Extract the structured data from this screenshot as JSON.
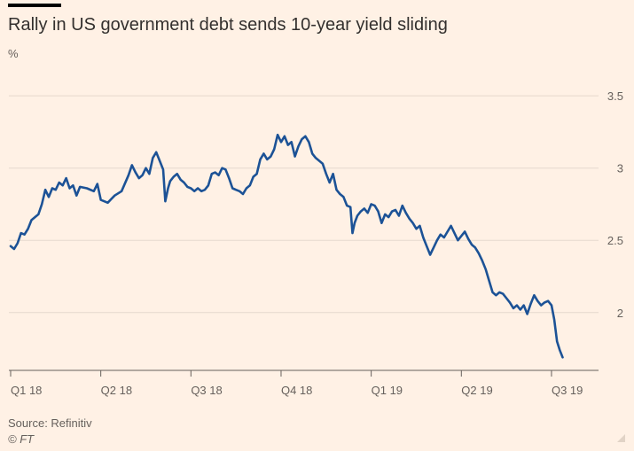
{
  "chart_data": {
    "type": "line",
    "title": "Rally in US government debt sends 10-year yield sliding",
    "ylabel": "%",
    "xlabel": "",
    "ylim": [
      1.6,
      3.55
    ],
    "yticks": [
      2,
      2.5,
      3,
      3.5
    ],
    "ytick_labels": [
      "2",
      "2.5",
      "3",
      "3.5"
    ],
    "xticks": [
      {
        "label": "Q1 18",
        "week": 0
      },
      {
        "label": "Q2 18",
        "week": 13
      },
      {
        "label": "Q3 18",
        "week": 26
      },
      {
        "label": "Q4 18",
        "week": 39
      },
      {
        "label": "Q1 19",
        "week": 52
      },
      {
        "label": "Q2 19",
        "week": 65
      },
      {
        "label": "Q3 19",
        "week": 78
      }
    ],
    "x_unit": "weeks since 2018-01-01",
    "series": [
      {
        "name": "US 10-year Treasury yield",
        "color": "#1c5296",
        "points": [
          [
            0,
            2.46
          ],
          [
            0.5,
            2.44
          ],
          [
            1,
            2.48
          ],
          [
            1.5,
            2.55
          ],
          [
            2,
            2.54
          ],
          [
            2.5,
            2.58
          ],
          [
            3,
            2.64
          ],
          [
            3.5,
            2.66
          ],
          [
            4,
            2.68
          ],
          [
            4.5,
            2.75
          ],
          [
            5,
            2.85
          ],
          [
            5.5,
            2.8
          ],
          [
            6,
            2.86
          ],
          [
            6.5,
            2.85
          ],
          [
            7,
            2.9
          ],
          [
            7.5,
            2.88
          ],
          [
            8,
            2.93
          ],
          [
            8.5,
            2.86
          ],
          [
            9,
            2.88
          ],
          [
            9.5,
            2.81
          ],
          [
            10,
            2.87
          ],
          [
            11,
            2.86
          ],
          [
            12,
            2.84
          ],
          [
            12.5,
            2.89
          ],
          [
            13,
            2.78
          ],
          [
            14,
            2.76
          ],
          [
            15,
            2.81
          ],
          [
            16,
            2.84
          ],
          [
            17,
            2.95
          ],
          [
            17.5,
            3.02
          ],
          [
            18,
            2.97
          ],
          [
            18.5,
            2.93
          ],
          [
            19,
            2.95
          ],
          [
            19.5,
            3.0
          ],
          [
            20,
            2.96
          ],
          [
            20.5,
            3.07
          ],
          [
            21,
            3.11
          ],
          [
            21.5,
            3.05
          ],
          [
            22,
            2.99
          ],
          [
            22.3,
            2.77
          ],
          [
            22.7,
            2.86
          ],
          [
            23,
            2.91
          ],
          [
            23.5,
            2.94
          ],
          [
            24,
            2.96
          ],
          [
            24.5,
            2.92
          ],
          [
            25,
            2.9
          ],
          [
            25.5,
            2.87
          ],
          [
            26,
            2.86
          ],
          [
            26.5,
            2.84
          ],
          [
            27,
            2.86
          ],
          [
            27.5,
            2.84
          ],
          [
            28,
            2.85
          ],
          [
            28.5,
            2.88
          ],
          [
            29,
            2.96
          ],
          [
            29.5,
            2.97
          ],
          [
            30,
            2.95
          ],
          [
            30.5,
            3.0
          ],
          [
            31,
            2.99
          ],
          [
            31.5,
            2.93
          ],
          [
            32,
            2.86
          ],
          [
            32.5,
            2.85
          ],
          [
            33,
            2.84
          ],
          [
            33.5,
            2.82
          ],
          [
            34,
            2.86
          ],
          [
            34.5,
            2.88
          ],
          [
            35,
            2.94
          ],
          [
            35.5,
            2.96
          ],
          [
            36,
            3.06
          ],
          [
            36.5,
            3.1
          ],
          [
            37,
            3.06
          ],
          [
            37.5,
            3.08
          ],
          [
            38,
            3.13
          ],
          [
            38.5,
            3.23
          ],
          [
            39,
            3.18
          ],
          [
            39.5,
            3.22
          ],
          [
            40,
            3.16
          ],
          [
            40.5,
            3.18
          ],
          [
            41,
            3.08
          ],
          [
            41.5,
            3.15
          ],
          [
            42,
            3.2
          ],
          [
            42.5,
            3.22
          ],
          [
            43,
            3.18
          ],
          [
            43.5,
            3.1
          ],
          [
            44,
            3.07
          ],
          [
            44.5,
            3.05
          ],
          [
            45,
            3.03
          ],
          [
            45.5,
            2.96
          ],
          [
            46,
            2.9
          ],
          [
            46.5,
            2.96
          ],
          [
            47,
            2.85
          ],
          [
            47.5,
            2.82
          ],
          [
            48,
            2.8
          ],
          [
            48.5,
            2.74
          ],
          [
            49,
            2.73
          ],
          [
            49.3,
            2.55
          ],
          [
            49.6,
            2.62
          ],
          [
            50,
            2.67
          ],
          [
            50.5,
            2.7
          ],
          [
            51,
            2.72
          ],
          [
            51.5,
            2.69
          ],
          [
            52,
            2.75
          ],
          [
            52.5,
            2.74
          ],
          [
            53,
            2.7
          ],
          [
            53.5,
            2.62
          ],
          [
            54,
            2.68
          ],
          [
            54.5,
            2.66
          ],
          [
            55,
            2.7
          ],
          [
            55.5,
            2.71
          ],
          [
            56,
            2.67
          ],
          [
            56.5,
            2.74
          ],
          [
            57,
            2.69
          ],
          [
            57.5,
            2.65
          ],
          [
            58,
            2.62
          ],
          [
            58.5,
            2.58
          ],
          [
            59,
            2.6
          ],
          [
            59.5,
            2.52
          ],
          [
            60,
            2.46
          ],
          [
            60.5,
            2.4
          ],
          [
            61,
            2.45
          ],
          [
            61.5,
            2.5
          ],
          [
            62,
            2.54
          ],
          [
            62.5,
            2.52
          ],
          [
            63,
            2.56
          ],
          [
            63.5,
            2.6
          ],
          [
            64,
            2.55
          ],
          [
            64.5,
            2.5
          ],
          [
            65,
            2.53
          ],
          [
            65.5,
            2.56
          ],
          [
            66,
            2.51
          ],
          [
            66.5,
            2.47
          ],
          [
            67,
            2.45
          ],
          [
            67.5,
            2.41
          ],
          [
            68,
            2.36
          ],
          [
            68.5,
            2.3
          ],
          [
            69,
            2.22
          ],
          [
            69.5,
            2.14
          ],
          [
            70,
            2.12
          ],
          [
            70.5,
            2.14
          ],
          [
            71,
            2.13
          ],
          [
            71.5,
            2.1
          ],
          [
            72,
            2.07
          ],
          [
            72.5,
            2.03
          ],
          [
            73,
            2.05
          ],
          [
            73.5,
            2.02
          ],
          [
            74,
            2.05
          ],
          [
            74.5,
            1.99
          ],
          [
            75,
            2.06
          ],
          [
            75.5,
            2.12
          ],
          [
            76,
            2.08
          ],
          [
            76.5,
            2.05
          ],
          [
            77,
            2.07
          ],
          [
            77.5,
            2.08
          ],
          [
            78,
            2.05
          ],
          [
            78.4,
            1.95
          ],
          [
            78.8,
            1.8
          ],
          [
            79.2,
            1.74
          ],
          [
            79.6,
            1.69
          ]
        ]
      }
    ]
  },
  "footer": {
    "source": "Source: Refinitiv",
    "copyright": "© FT"
  },
  "colors": {
    "background": "#fff1e5",
    "line": "#1c5296",
    "gridline": "#e6d9ce",
    "baseline": "#66605c"
  }
}
